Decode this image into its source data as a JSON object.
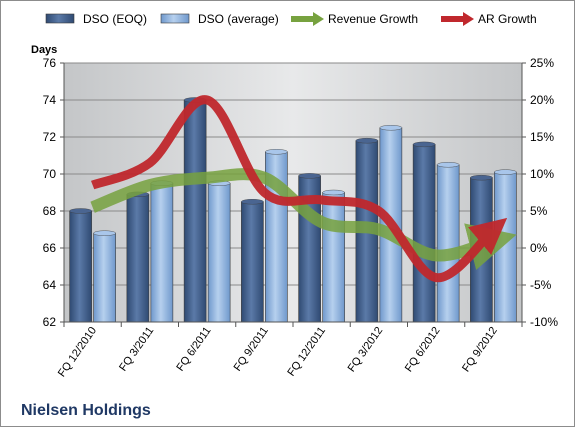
{
  "chart_data": {
    "type": "bar",
    "title": "Nielsen Holdings",
    "categories": [
      "FQ 12/2010",
      "FQ 3/2011",
      "FQ 6/2011",
      "FQ 9/2011",
      "FQ 12/2011",
      "FQ 3/2012",
      "FQ 6/2012",
      "FQ 9/2012"
    ],
    "y_left": {
      "label": "Days",
      "ticks": [
        "62",
        "64",
        "66",
        "68",
        "70",
        "72",
        "74",
        "76"
      ],
      "lim": [
        62,
        76
      ]
    },
    "y_right": {
      "label": "",
      "ticks": [
        "-10%",
        "-5%",
        "0%",
        "5%",
        "10%",
        "15%",
        "20%",
        "25%"
      ],
      "lim": [
        -10,
        25
      ]
    },
    "series": [
      {
        "name": "DSO (EOQ)",
        "type": "bar",
        "axis": "left",
        "color": "#4a6591",
        "values": [
          68.0,
          68.9,
          74.0,
          68.5,
          69.9,
          71.8,
          71.6,
          69.8
        ]
      },
      {
        "name": "DSO (average)",
        "type": "bar",
        "axis": "left",
        "color": "#8db3e2",
        "values": [
          66.8,
          69.5,
          69.5,
          71.2,
          69.0,
          72.5,
          70.5,
          70.1
        ]
      },
      {
        "name": "Revenue Growth",
        "type": "line",
        "axis": "right",
        "color": "#77a23f",
        "values": [
          5.5,
          8.5,
          9.5,
          9.5,
          3.5,
          2.5,
          -1.0,
          1.0
        ]
      },
      {
        "name": "AR Growth",
        "type": "line",
        "axis": "right",
        "color": "#c0282d",
        "values": [
          8.5,
          11.5,
          20.0,
          7.5,
          6.5,
          5.0,
          -4.0,
          2.5
        ]
      }
    ],
    "grid": true,
    "legend_position": "top"
  }
}
